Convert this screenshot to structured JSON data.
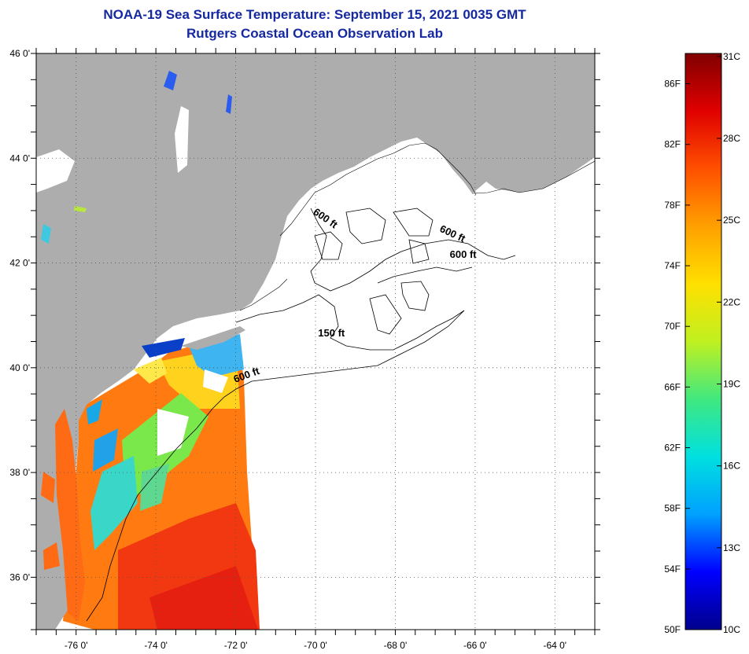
{
  "header": {
    "title": "NOAA-19 Sea Surface Temperature:  September 15, 2021 0035 GMT",
    "subtitle": "Rutgers Coastal Ocean Observation Lab"
  },
  "map": {
    "lon_range": [
      -77,
      -63
    ],
    "lat_range": [
      35,
      46
    ],
    "lat_labels": [
      {
        "lat": 46,
        "text": "46 0'"
      },
      {
        "lat": 44,
        "text": "44 0'"
      },
      {
        "lat": 42,
        "text": "42 0'"
      },
      {
        "lat": 40,
        "text": "40 0'"
      },
      {
        "lat": 38,
        "text": "38 0'"
      },
      {
        "lat": 36,
        "text": "36 0'"
      }
    ],
    "lon_labels": [
      {
        "lon": -76,
        "text": "-76 0'"
      },
      {
        "lon": -74,
        "text": "-74 0'"
      },
      {
        "lon": -72,
        "text": "-72 0'"
      },
      {
        "lon": -70,
        "text": "-70 0'"
      },
      {
        "lon": -68,
        "text": "-68 0'"
      },
      {
        "lon": -66,
        "text": "-66 0'"
      },
      {
        "lon": -64,
        "text": "-64 0'"
      }
    ],
    "contour_labels": [
      {
        "lon": -69.8,
        "lat": 42.8,
        "text": "600 ft",
        "angle": 35
      },
      {
        "lon": -66.6,
        "lat": 42.5,
        "text": "600 ft",
        "angle": 25
      },
      {
        "lon": -66.3,
        "lat": 42.1,
        "text": "600 ft",
        "angle": 0
      },
      {
        "lon": -69.6,
        "lat": 40.6,
        "text": "150 ft",
        "angle": 0
      },
      {
        "lon": -71.7,
        "lat": 39.8,
        "text": "600 ft",
        "angle": -20
      }
    ],
    "colors": {
      "land": "#adadad",
      "ocean": "#ffffff"
    }
  },
  "colorbar": {
    "min_f": 50,
    "max_f": 88,
    "f_labels": [
      {
        "value": 50,
        "text": "50F"
      },
      {
        "value": 54,
        "text": "54F"
      },
      {
        "value": 58,
        "text": "58F"
      },
      {
        "value": 62,
        "text": "62F"
      },
      {
        "value": 66,
        "text": "66F"
      },
      {
        "value": 70,
        "text": "70F"
      },
      {
        "value": 74,
        "text": "74F"
      },
      {
        "value": 78,
        "text": "78F"
      },
      {
        "value": 82,
        "text": "82F"
      },
      {
        "value": 86,
        "text": "86F"
      }
    ],
    "c_labels": [
      {
        "value": 10,
        "text": "10C"
      },
      {
        "value": 13,
        "text": "13C"
      },
      {
        "value": 16,
        "text": "16C"
      },
      {
        "value": 19,
        "text": "19C"
      },
      {
        "value": 22,
        "text": "22C"
      },
      {
        "value": 25,
        "text": "25C"
      },
      {
        "value": 28,
        "text": "28C"
      },
      {
        "value": 31,
        "text": "31C"
      }
    ],
    "gradient": [
      "#00008c",
      "#0000ff",
      "#00a0ff",
      "#00e0e0",
      "#40e880",
      "#c0f020",
      "#ffe000",
      "#ffa000",
      "#ff5000",
      "#e00000",
      "#800000"
    ]
  }
}
